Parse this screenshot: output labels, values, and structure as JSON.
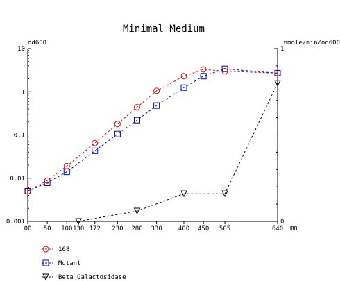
{
  "chart_data": {
    "type": "line",
    "title": "Minimal Medium",
    "left_axis_label": "od600",
    "right_axis_label": "nmole/min/od600",
    "x_unit": "mn",
    "x_ticks": [
      0,
      50,
      100,
      130,
      172,
      230,
      280,
      330,
      400,
      450,
      505,
      640
    ],
    "x_tick_labels": [
      "00",
      "50",
      "100",
      "130",
      "172",
      "230",
      "280",
      "330",
      "400",
      "450",
      "505",
      "640"
    ],
    "xlim": [
      0,
      640
    ],
    "left_scale": "log",
    "left_ylim": [
      0.001,
      10
    ],
    "left_ticks": [
      0.001,
      0.01,
      0.1,
      1,
      10
    ],
    "left_tick_labels": [
      "0.001",
      "0.01",
      "0.1",
      "1",
      "10"
    ],
    "right_ylim": [
      0,
      1
    ],
    "right_ticks": [
      0,
      1
    ],
    "right_tick_labels": [
      "0",
      "1"
    ],
    "series": [
      {
        "name": "168",
        "axis": "left",
        "color": "#dd0000",
        "marker": "circle",
        "x": [
          0,
          50,
          100,
          172,
          230,
          280,
          330,
          400,
          450,
          505,
          640
        ],
        "y": [
          0.005,
          0.0088,
          0.019,
          0.065,
          0.18,
          0.44,
          1.05,
          2.3,
          3.3,
          3.0,
          2.7
        ]
      },
      {
        "name": "Mutant",
        "axis": "left",
        "color": "#0000cc",
        "marker": "square",
        "x": [
          0,
          50,
          100,
          172,
          230,
          280,
          330,
          400,
          450,
          505,
          640
        ],
        "y": [
          0.005,
          0.0078,
          0.014,
          0.043,
          0.105,
          0.22,
          0.48,
          1.25,
          2.3,
          3.4,
          2.7
        ]
      },
      {
        "name": "Beta Galactosidase",
        "axis": "right",
        "color": "#000000",
        "marker": "triangle-down",
        "x": [
          130,
          280,
          400,
          505,
          640
        ],
        "y": [
          0.0,
          0.06,
          0.16,
          0.16,
          0.8
        ]
      }
    ]
  }
}
